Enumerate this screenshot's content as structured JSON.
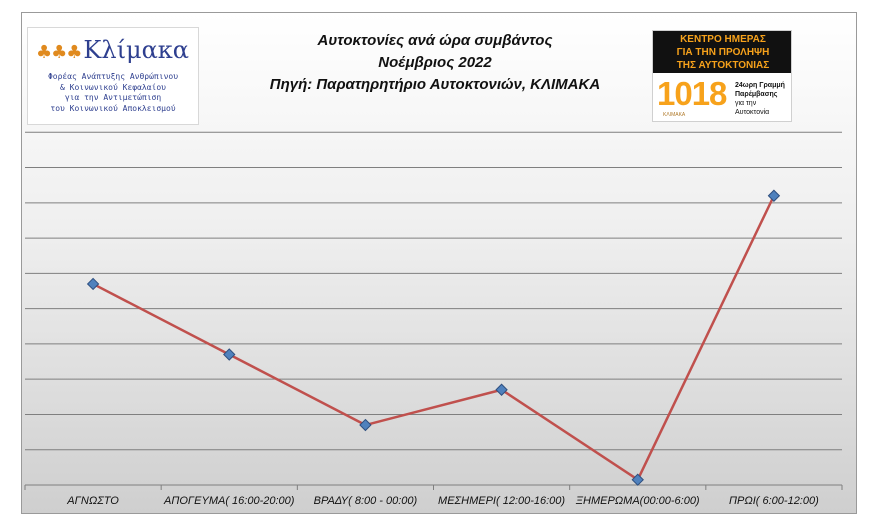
{
  "title": "Αυτοκτονίες ανά ώρα συμβάντος",
  "subtitle": "Νοέμβριος 2022",
  "source": "Πηγή: Παρατηρητήριο  Αυτοκτονιών, ΚΛΙΜΑΚΑ",
  "logo_left": {
    "brand": "Κλίμακα",
    "tagline_lines": [
      "Φορέας Ανάπτυξης Ανθρώπινου",
      "& Κοινωνικού Κεφαλαίου",
      "για την Αντιμετώπιση",
      "του Κοινωνικού Αποκλεισμού"
    ]
  },
  "logo_right": {
    "heading_lines": [
      "ΚΕΝΤΡΟ ΗΜΕΡΑΣ",
      "ΓΙΑ ΤΗΝ ΠΡΟΛΗΨΗ",
      "ΤΗΣ ΑΥΤΟΚΤΟΝΙΑΣ"
    ],
    "number": "1018",
    "line1": "24ωρη Γραμμή",
    "line2": "Παρέμβασης",
    "line3": "για την Αυτοκτονία",
    "sub": "ΚΛΙΜΑΚΑ"
  },
  "chart_data": {
    "type": "line",
    "categories": [
      "ΑΓΝΩΣΤΟ",
      "ΑΠΟΓΕΥΜΑ( 16:00-20:00)",
      "ΒΡΑΔΥ( 8:00 - 00:00)",
      "ΜΕΣΗΜΕΡΙ( 12:00-16:00)",
      "ΞΗΜΕΡΩΜΑ(00:00-6:00)",
      "ΠΡΩΙ( 6:00-12:00)"
    ],
    "series": [
      {
        "values": [
          5.7,
          3.7,
          1.7,
          2.7,
          0.15,
          8.2
        ]
      }
    ],
    "ylim": [
      0,
      11
    ],
    "gridlines": 11,
    "y_tick_labels_shown": false,
    "grid": true,
    "legend": "none",
    "colors": {
      "line": "#c0504d",
      "marker": "#4f81bd",
      "marker_edge": "#2f4f7f",
      "grid": "#7f7f7f"
    }
  }
}
